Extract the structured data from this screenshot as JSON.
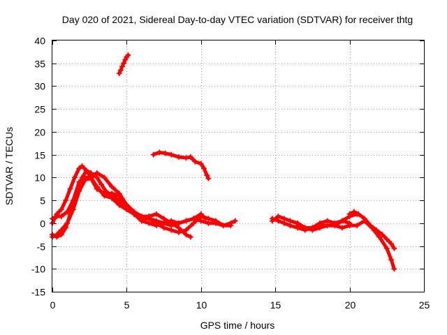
{
  "chart_data": {
    "type": "scatter",
    "title": "Day 020 of 2021, Sidereal Day-to-day VTEC variation (SDTVAR) for receiver thtg",
    "xlabel": "GPS time / hours",
    "ylabel": "SDTVAR / TECUs",
    "xlim": [
      0,
      25
    ],
    "ylim": [
      -15,
      40
    ],
    "xticks": [
      0,
      5,
      10,
      15,
      20,
      25
    ],
    "yticks": [
      -15,
      -10,
      -5,
      0,
      5,
      10,
      15,
      20,
      25,
      30,
      35,
      40
    ],
    "xtick_labels": [
      "0",
      "5",
      "10",
      "15",
      "20",
      "25"
    ],
    "ytick_labels": [
      "-15",
      "-10",
      "-5",
      "0",
      "5",
      "10",
      "15",
      "20",
      "25",
      "30",
      "35",
      "40"
    ],
    "grid": true,
    "marker": "+",
    "color": "#ff0000",
    "series": [
      {
        "name": "s1",
        "x": [
          0.0,
          0.3,
          0.6,
          0.9,
          1.2,
          1.5,
          1.8,
          2.0,
          2.3,
          2.6,
          3.0,
          3.5,
          4.0,
          4.5,
          5.0,
          5.5,
          6.0,
          6.5,
          7.0,
          7.5,
          8.0,
          8.5,
          9.0,
          9.5,
          10.0,
          10.5,
          11.0,
          11.5,
          12.0,
          12.3
        ],
        "y": [
          0.0,
          2.0,
          3.0,
          5.0,
          7.5,
          10.0,
          12.0,
          12.5,
          11.5,
          10.0,
          8.0,
          6.0,
          5.5,
          4.0,
          3.0,
          2.0,
          1.0,
          1.0,
          0.5,
          0.0,
          -0.5,
          0.0,
          0.5,
          1.0,
          0.5,
          0.0,
          0.0,
          -0.5,
          0.0,
          0.5
        ]
      },
      {
        "name": "s2",
        "x": [
          0.0,
          0.3,
          0.6,
          0.9,
          1.2,
          1.5,
          1.8,
          2.0,
          2.3,
          2.6,
          3.0,
          3.3,
          3.6,
          4.0,
          4.5,
          5.0,
          5.5,
          6.0,
          6.5,
          7.0,
          7.5,
          8.0,
          8.5,
          9.0,
          9.5,
          10.0,
          10.5,
          11.0,
          11.5,
          12.0
        ],
        "y": [
          -2.5,
          -3.0,
          -2.5,
          -1.0,
          2.0,
          5.0,
          8.0,
          10.0,
          11.5,
          11.0,
          10.0,
          8.5,
          7.0,
          6.0,
          5.0,
          3.5,
          2.0,
          1.5,
          1.0,
          0.0,
          -1.0,
          -1.5,
          -2.0,
          -1.5,
          0.0,
          1.5,
          1.0,
          0.5,
          -0.5,
          -0.5
        ]
      },
      {
        "name": "s3",
        "x": [
          0.0,
          0.3,
          0.6,
          1.0,
          1.4,
          1.8,
          2.2,
          2.6,
          3.0,
          3.5,
          4.0,
          4.5,
          5.0,
          5.5,
          6.0,
          6.5,
          7.0,
          7.5,
          8.0,
          8.5,
          9.0,
          9.3
        ],
        "y": [
          -3.0,
          -2.5,
          -1.5,
          0.0,
          3.0,
          7.0,
          9.5,
          9.8,
          7.5,
          6.5,
          6.5,
          6.0,
          4.0,
          2.5,
          1.5,
          1.5,
          2.0,
          1.0,
          0.0,
          -1.0,
          -2.5,
          -3.0
        ]
      },
      {
        "name": "s4",
        "x": [
          0.0,
          0.3,
          0.6,
          1.0,
          1.4,
          1.8,
          2.2,
          2.6,
          3.0,
          3.5,
          4.0,
          4.5,
          5.0,
          5.5,
          6.0,
          6.5,
          7.0,
          7.5,
          8.0,
          8.5,
          9.0,
          9.5,
          10.0,
          10.3
        ],
        "y": [
          1.0,
          1.5,
          1.5,
          2.5,
          5.0,
          9.0,
          10.0,
          10.0,
          11.0,
          10.0,
          8.0,
          6.5,
          4.0,
          2.0,
          0.5,
          0.0,
          -0.5,
          0.0,
          0.5,
          0.0,
          0.5,
          1.0,
          2.0,
          1.0
        ]
      },
      {
        "name": "s5",
        "x": [
          4.5,
          4.6,
          4.7,
          4.8,
          4.9,
          5.0,
          5.1
        ],
        "y": [
          32.8,
          33.5,
          34.3,
          35.0,
          35.8,
          36.4,
          36.8
        ]
      },
      {
        "name": "s6",
        "x": [
          6.8,
          7.2,
          7.6,
          8.0,
          8.5,
          9.0,
          9.3,
          9.6,
          10.0,
          10.2,
          10.4,
          10.5
        ],
        "y": [
          15.0,
          15.5,
          15.3,
          15.0,
          14.5,
          14.3,
          14.5,
          13.5,
          13.0,
          12.0,
          10.5,
          9.8
        ]
      },
      {
        "name": "s7",
        "x": [
          14.8,
          15.2,
          15.6,
          16.0,
          16.5,
          17.0,
          17.5,
          18.0,
          18.5,
          19.0,
          19.5,
          20.0,
          20.5
        ],
        "y": [
          0.5,
          1.5,
          1.0,
          0.5,
          0.0,
          -1.0,
          -1.5,
          -1.0,
          -0.5,
          -0.5,
          0.5,
          1.5,
          2.0
        ]
      },
      {
        "name": "s8",
        "x": [
          14.8,
          15.2,
          15.6,
          16.0,
          16.5,
          17.0,
          17.5,
          18.0,
          18.5,
          19.0,
          19.5,
          20.0
        ],
        "y": [
          1.0,
          0.5,
          0.0,
          -0.5,
          -1.0,
          -1.5,
          -1.0,
          0.0,
          0.5,
          0.0,
          0.5,
          0.0
        ]
      },
      {
        "name": "s9",
        "x": [
          16.5,
          17.0,
          17.5,
          18.0,
          18.5,
          19.0,
          19.5,
          20.0,
          20.5,
          21.0,
          21.5,
          22.0,
          22.5,
          22.8,
          23.0
        ],
        "y": [
          -0.5,
          -1.0,
          -1.0,
          -0.5,
          -0.5,
          -0.5,
          -1.0,
          -0.5,
          -0.5,
          0.5,
          -1.0,
          -3.0,
          -5.5,
          -8.0,
          -10.0
        ]
      },
      {
        "name": "s10",
        "x": [
          20.0,
          20.3,
          20.6,
          21.0,
          21.4,
          21.8,
          22.2,
          22.5,
          22.8,
          23.0
        ],
        "y": [
          2.0,
          2.5,
          2.0,
          1.0,
          -0.5,
          -1.5,
          -2.5,
          -3.5,
          -4.5,
          -5.5
        ]
      }
    ]
  }
}
